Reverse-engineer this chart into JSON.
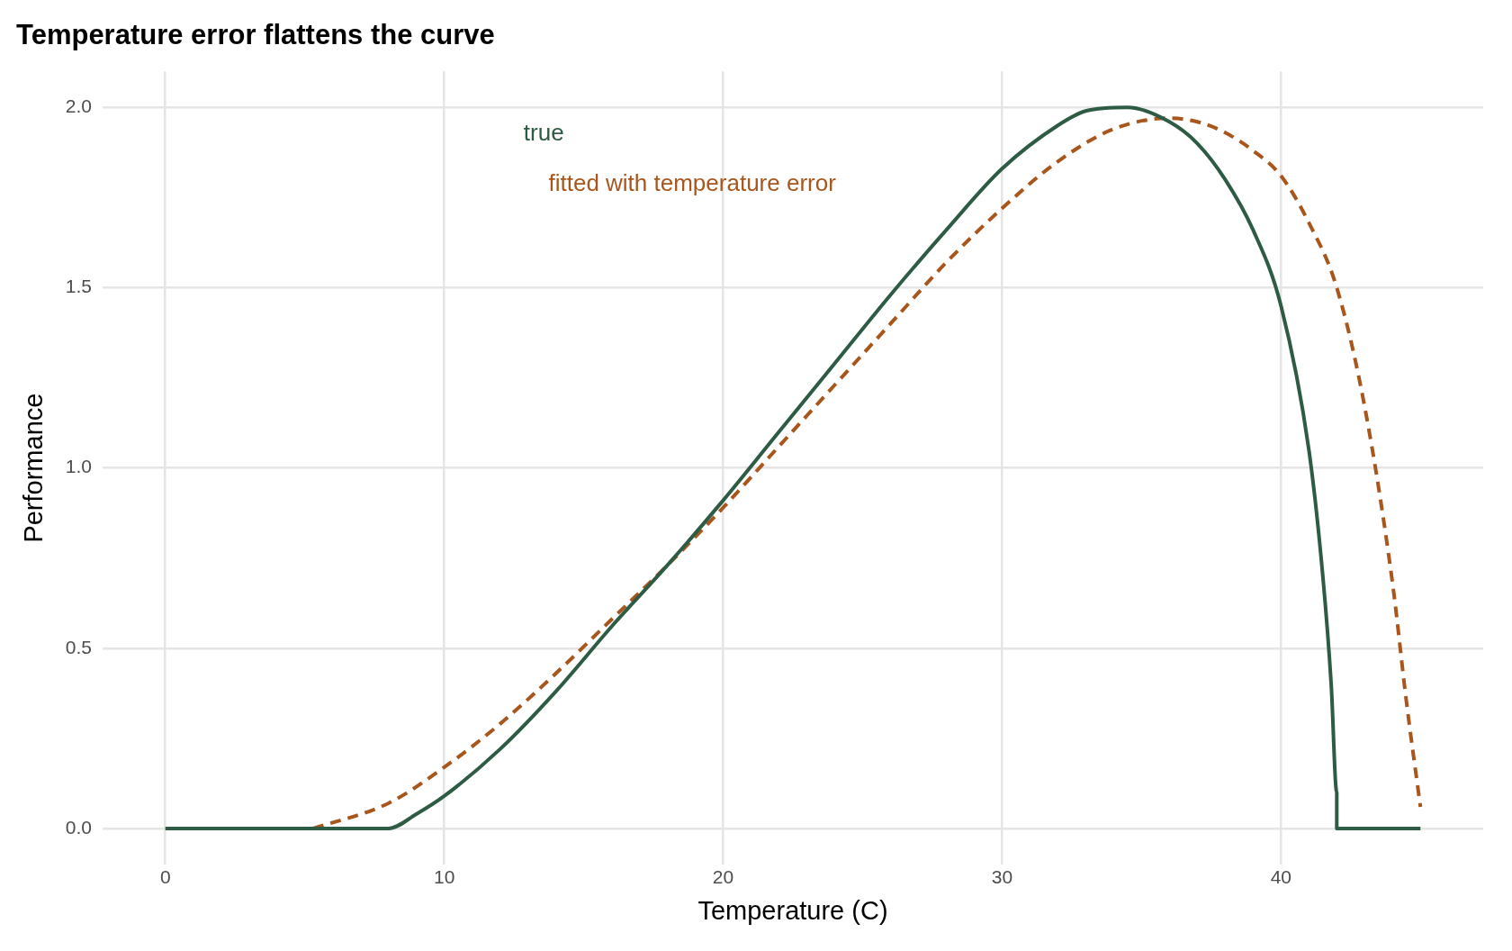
{
  "chart_data": {
    "type": "line",
    "title": "Temperature error flattens the curve",
    "xlabel": "Temperature (C)",
    "ylabel": "Performance",
    "xlim": [
      -2.25,
      47.25
    ],
    "ylim": [
      -0.1,
      2.1
    ],
    "xticks": [
      0,
      10,
      20,
      30,
      40
    ],
    "yticks": [
      {
        "value": 0,
        "label": "0.0"
      },
      {
        "value": 0.5,
        "label": "0.5"
      },
      {
        "value": 1,
        "label": "1.0"
      },
      {
        "value": 1.5,
        "label": "1.5"
      },
      {
        "value": 2,
        "label": "2.0"
      }
    ],
    "grid": true,
    "legend": false,
    "marker": "none",
    "series": [
      {
        "name": "true",
        "color": "#2e5b43",
        "line_style": "solid",
        "x": [
          0,
          8,
          9,
          10,
          12,
          14,
          16,
          18,
          20,
          22,
          24,
          26,
          28,
          30,
          32,
          33,
          34.5,
          36,
          37,
          38,
          39,
          40,
          41,
          41.5,
          41.8,
          42,
          42,
          45
        ],
        "values": [
          0,
          0,
          0.04,
          0.09,
          0.22,
          0.38,
          0.56,
          0.73,
          0.91,
          1.1,
          1.29,
          1.48,
          1.66,
          1.83,
          1.95,
          1.99,
          2,
          1.96,
          1.9,
          1.8,
          1.66,
          1.45,
          1.05,
          0.7,
          0.4,
          0.1,
          0,
          0
        ]
      },
      {
        "name": "fitted with temperature error",
        "color": "#a8561c",
        "line_style": "dashed",
        "x": [
          5.3,
          8,
          10,
          12,
          14,
          16,
          18,
          20,
          22,
          24,
          26,
          28,
          30,
          32,
          34,
          36,
          37,
          38,
          39,
          40,
          41,
          42,
          43,
          44,
          44.5,
          45
        ],
        "values": [
          0,
          0.07,
          0.17,
          0.29,
          0.43,
          0.58,
          0.73,
          0.89,
          1.06,
          1.23,
          1.4,
          1.57,
          1.72,
          1.85,
          1.94,
          1.97,
          1.96,
          1.93,
          1.88,
          1.81,
          1.68,
          1.5,
          1.17,
          0.68,
          0.35,
          0.06
        ]
      }
    ]
  }
}
